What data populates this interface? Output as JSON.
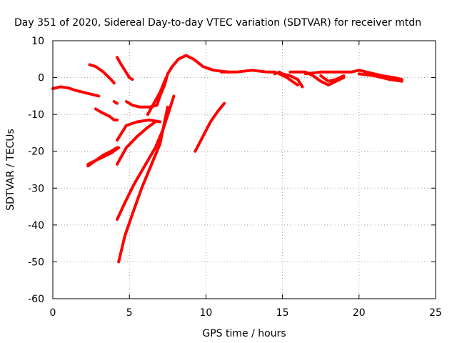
{
  "chart_data": {
    "type": "line",
    "title": "Day 351 of 2020, Sidereal Day-to-day VTEC variation (SDTVAR) for receiver mtdn",
    "xlabel": "GPS time / hours",
    "ylabel": "SDTVAR / TECUs",
    "xlim": [
      0,
      25
    ],
    "ylim": [
      -60,
      10
    ],
    "xticks": [
      0,
      5,
      10,
      15,
      20,
      25
    ],
    "yticks": [
      10,
      0,
      -10,
      -20,
      -30,
      -40,
      -50,
      -60
    ],
    "xtick_labels": [
      "0",
      "5",
      "10",
      "15",
      "20",
      "25"
    ],
    "ytick_labels": [
      "10",
      "0",
      "-10",
      "-20",
      "-30",
      "-40",
      "-50",
      "-60"
    ],
    "grid": true,
    "legend": "none",
    "color": "#ff0000",
    "series": [
      {
        "name": "s1",
        "points": [
          [
            0,
            -3
          ],
          [
            0.5,
            -2.5
          ],
          [
            1,
            -2.8
          ],
          [
            1.5,
            -3.5
          ],
          [
            2,
            -4
          ],
          [
            2.5,
            -4.5
          ],
          [
            3,
            -5
          ]
        ]
      },
      {
        "name": "s2",
        "points": [
          [
            2.4,
            3.5
          ],
          [
            2.8,
            3
          ],
          [
            3.3,
            1.5
          ],
          [
            3.8,
            -0.5
          ],
          [
            4.0,
            -1.5
          ]
        ]
      },
      {
        "name": "s3",
        "points": [
          [
            4.2,
            5.5
          ],
          [
            4.4,
            4
          ],
          [
            4.7,
            2
          ],
          [
            5.0,
            0
          ],
          [
            5.2,
            -0.5
          ]
        ]
      },
      {
        "name": "s4",
        "points": [
          [
            2.8,
            -8.5
          ],
          [
            3.2,
            -9.5
          ],
          [
            3.7,
            -10.5
          ],
          [
            4.0,
            -11.5
          ],
          [
            4.2,
            -11.5
          ]
        ]
      },
      {
        "name": "s5",
        "points": [
          [
            4.0,
            -6.5
          ],
          [
            4.2,
            -7
          ]
        ]
      },
      {
        "name": "s6",
        "points": [
          [
            4.8,
            -6.5
          ],
          [
            5.2,
            -7.5
          ],
          [
            5.7,
            -8
          ],
          [
            6.3,
            -8
          ],
          [
            6.8,
            -7.5
          ],
          [
            7.0,
            -5
          ],
          [
            7.3,
            -2
          ],
          [
            7.5,
            1
          ],
          [
            7.8,
            3
          ],
          [
            8.2,
            5
          ],
          [
            8.7,
            6
          ],
          [
            9.2,
            5
          ],
          [
            9.8,
            3
          ],
          [
            10.5,
            2
          ],
          [
            11.5,
            1.5
          ]
        ]
      },
      {
        "name": "s7",
        "points": [
          [
            2.3,
            -24
          ],
          [
            2.8,
            -22.5
          ],
          [
            3.3,
            -21
          ],
          [
            3.8,
            -20
          ],
          [
            4.2,
            -19
          ]
        ]
      },
      {
        "name": "s8",
        "points": [
          [
            2.3,
            -23.5
          ],
          [
            2.8,
            -22.5
          ],
          [
            3.3,
            -21.5
          ],
          [
            3.8,
            -20.5
          ],
          [
            4.3,
            -19
          ]
        ]
      },
      {
        "name": "s9",
        "points": [
          [
            4.2,
            -17
          ],
          [
            4.8,
            -13
          ],
          [
            5.5,
            -12
          ],
          [
            6.3,
            -11.5
          ],
          [
            7.0,
            -12
          ]
        ]
      },
      {
        "name": "s10",
        "points": [
          [
            4.2,
            -23.5
          ],
          [
            4.8,
            -19
          ],
          [
            5.5,
            -16
          ],
          [
            6.2,
            -13.5
          ],
          [
            6.7,
            -12
          ]
        ]
      },
      {
        "name": "s11",
        "points": [
          [
            4.2,
            -38.5
          ],
          [
            4.7,
            -34
          ],
          [
            5.3,
            -29
          ],
          [
            6.0,
            -24
          ],
          [
            6.7,
            -19
          ],
          [
            7.2,
            -14
          ],
          [
            7.6,
            -9
          ],
          [
            7.9,
            -5
          ]
        ]
      },
      {
        "name": "s12",
        "points": [
          [
            4.3,
            -50
          ],
          [
            4.7,
            -43
          ],
          [
            5.2,
            -37
          ],
          [
            5.8,
            -30
          ],
          [
            6.5,
            -23
          ],
          [
            7.0,
            -18
          ],
          [
            7.3,
            -12
          ],
          [
            7.5,
            -8
          ]
        ]
      },
      {
        "name": "s13",
        "points": [
          [
            6.2,
            -10
          ],
          [
            6.6,
            -7
          ],
          [
            7.0,
            -4
          ],
          [
            7.4,
            0
          ]
        ]
      },
      {
        "name": "s14",
        "points": [
          [
            9.3,
            -20
          ],
          [
            9.8,
            -16
          ],
          [
            10.3,
            -12
          ],
          [
            10.8,
            -9
          ],
          [
            11.2,
            -7
          ]
        ]
      },
      {
        "name": "s15",
        "points": [
          [
            11.0,
            1.5
          ],
          [
            12.0,
            1.5
          ],
          [
            13.0,
            2
          ],
          [
            14.0,
            1.5
          ],
          [
            14.5,
            1.5
          ]
        ]
      },
      {
        "name": "s16",
        "points": [
          [
            14.5,
            1
          ],
          [
            14.8,
            1.5
          ],
          [
            15.0,
            1
          ],
          [
            15.5,
            0.5
          ],
          [
            16.0,
            -0.5
          ],
          [
            16.3,
            -2.5
          ]
        ]
      },
      {
        "name": "s17",
        "points": [
          [
            14.8,
            1
          ],
          [
            15.3,
            0
          ],
          [
            15.8,
            -1.5
          ],
          [
            16.0,
            -2
          ]
        ]
      },
      {
        "name": "s18",
        "points": [
          [
            15.5,
            1.5
          ],
          [
            16.5,
            1.5
          ],
          [
            17.0,
            0.5
          ],
          [
            17.5,
            -1
          ],
          [
            18.0,
            -2
          ],
          [
            18.5,
            -1
          ],
          [
            19.0,
            0
          ]
        ]
      },
      {
        "name": "s19",
        "points": [
          [
            16.5,
            1
          ],
          [
            17.5,
            1.5
          ],
          [
            18.5,
            1.5
          ],
          [
            19.5,
            1.5
          ],
          [
            20.0,
            2
          ],
          [
            20.5,
            1.5
          ],
          [
            21.5,
            0.5
          ],
          [
            22.3,
            0
          ],
          [
            22.8,
            -0.5
          ]
        ]
      },
      {
        "name": "s20",
        "points": [
          [
            20.0,
            1
          ],
          [
            21.0,
            0.5
          ],
          [
            22.0,
            -0.5
          ],
          [
            22.8,
            -1
          ]
        ]
      },
      {
        "name": "s21",
        "points": [
          [
            17.5,
            0.5
          ],
          [
            18.0,
            -1
          ],
          [
            18.5,
            -0.5
          ],
          [
            19.0,
            0.5
          ]
        ]
      }
    ]
  }
}
